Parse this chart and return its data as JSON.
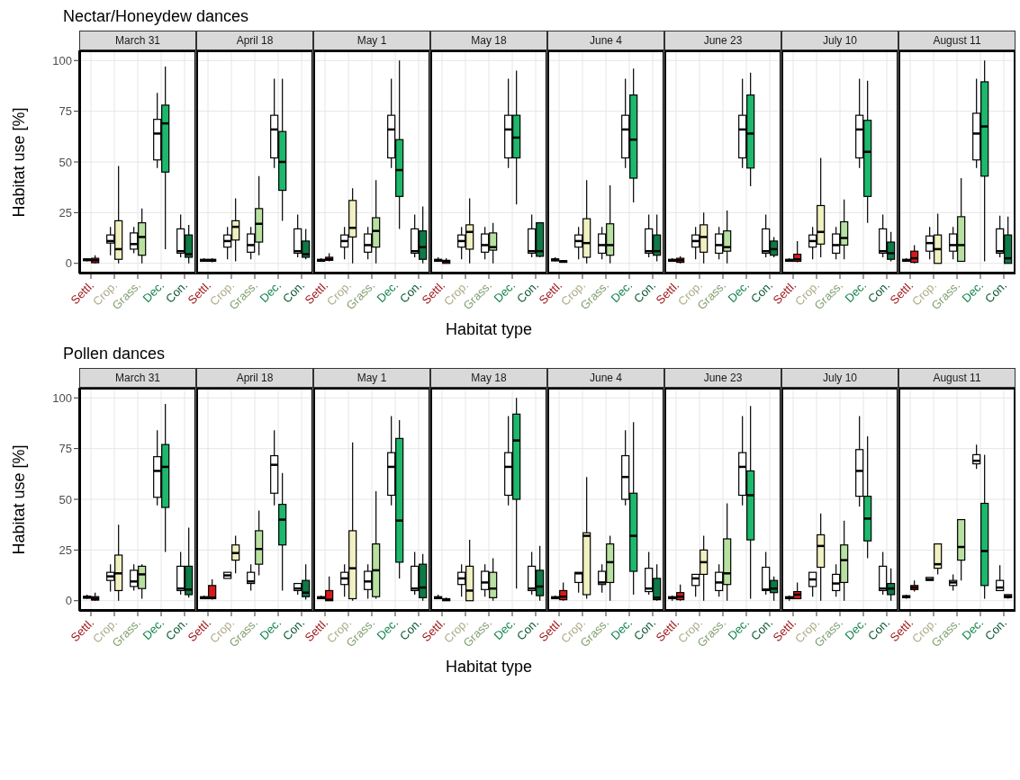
{
  "chart_data": [
    {
      "type": "box",
      "title": "Nectar/Honeydew dances",
      "subtitle": "March 31",
      "ylabel": "Habitat use [%]",
      "categories": [
        "Settl.",
        "Crop.",
        "Grass.",
        "Dec.",
        "Con."
      ],
      "ylim": [
        -5,
        105
      ],
      "yticks": [
        0,
        25,
        50,
        75,
        100
      ],
      "grid": true,
      "series": [
        {
          "color": "#ffffff",
          "boxes": [
            {
              "low": 1,
              "q1": 1.3,
              "median": 1.8,
              "q3": 2.2,
              "high": 2.5
            },
            {
              "low": 4,
              "q1": 10,
              "median": 11,
              "q3": 14,
              "high": 18
            },
            {
              "low": 5,
              "q1": 7,
              "median": 9.5,
              "q3": 15,
              "high": 18
            },
            {
              "low": 47,
              "q1": 51,
              "median": 64,
              "q3": 71,
              "high": 84
            },
            {
              "low": 3,
              "q1": 5,
              "median": 6,
              "q3": 17,
              "high": 24
            }
          ]
        },
        {
          "colors": [
            "#d7191c",
            "#f0f0c0",
            "#b8e0a0",
            "#1db86c",
            "#0e7a46"
          ],
          "boxes": [
            {
              "low": 0,
              "q1": 0.3,
              "median": 1.5,
              "q3": 2.5,
              "high": 4
            },
            {
              "low": 0,
              "q1": 2,
              "median": 7,
              "q3": 21,
              "high": 48
            },
            {
              "low": 0,
              "q1": 4,
              "median": 13,
              "q3": 20,
              "high": 27
            },
            {
              "low": 7,
              "q1": 45,
              "median": 69,
              "q3": 78,
              "high": 97
            },
            {
              "low": 0,
              "q1": 3,
              "median": 4.5,
              "q3": 14,
              "high": 19
            }
          ]
        }
      ]
    },
    {
      "type": "box",
      "subtitle": "April 18",
      "categories": [
        "Settl.",
        "Crop.",
        "Grass.",
        "Dec.",
        "Con."
      ],
      "ylim": [
        -5,
        105
      ],
      "yticks": [
        0,
        25,
        50,
        75,
        100
      ],
      "grid": true,
      "tick_labels": "x",
      "series": [
        {
          "color": "#ffffff",
          "boxes": [
            {
              "low": 1,
              "q1": 1,
              "median": 1.5,
              "q3": 2,
              "high": 2.5
            },
            {
              "low": 2,
              "q1": 8,
              "median": 11,
              "q3": 14,
              "high": 18
            },
            {
              "low": 2,
              "q1": 5.5,
              "median": 9,
              "q3": 14.5,
              "high": 18
            },
            {
              "low": 47,
              "q1": 52,
              "median": 66,
              "q3": 73,
              "high": 91
            },
            {
              "low": 3,
              "q1": 5,
              "median": 6,
              "q3": 17,
              "high": 24
            }
          ]
        },
        {
          "colors": [
            "#d7191c",
            "#f0f0c0",
            "#b8e0a0",
            "#1db86c",
            "#0e7a46"
          ],
          "boxes": [
            {
              "low": 0.5,
              "q1": 1,
              "median": 1.5,
              "q3": 2,
              "high": 2.5
            },
            {
              "low": 1,
              "q1": 11.5,
              "median": 18,
              "q3": 21,
              "high": 32
            },
            {
              "low": 4,
              "q1": 10.5,
              "median": 19.5,
              "q3": 27,
              "high": 43
            },
            {
              "low": 21,
              "q1": 36,
              "median": 50,
              "q3": 65,
              "high": 91
            },
            {
              "low": 2,
              "q1": 3,
              "median": 4.5,
              "q3": 11,
              "high": 17
            }
          ]
        }
      ]
    },
    {
      "type": "box",
      "subtitle": "May 1",
      "categories": [
        "Settl.",
        "Crop.",
        "Grass.",
        "Dec.",
        "Con."
      ],
      "ylim": [
        -5,
        105
      ],
      "yticks": [
        0,
        25,
        50,
        75,
        100
      ],
      "grid": true,
      "tick_labels": "x",
      "series": [
        {
          "color": "#ffffff",
          "boxes": [
            {
              "low": 1,
              "q1": 1,
              "median": 1.5,
              "q3": 2,
              "high": 2.5
            },
            {
              "low": 2,
              "q1": 8,
              "median": 11,
              "q3": 14,
              "high": 18
            },
            {
              "low": 2,
              "q1": 5.5,
              "median": 9,
              "q3": 14.5,
              "high": 18
            },
            {
              "low": 47,
              "q1": 52,
              "median": 66,
              "q3": 73,
              "high": 91
            },
            {
              "low": 3,
              "q1": 5,
              "median": 6,
              "q3": 17,
              "high": 24
            }
          ]
        },
        {
          "colors": [
            "#d7191c",
            "#f0f0c0",
            "#b8e0a0",
            "#1db86c",
            "#0e7a46"
          ],
          "boxes": [
            {
              "low": 1,
              "q1": 1.5,
              "median": 2,
              "q3": 3,
              "high": 5
            },
            {
              "low": 0,
              "q1": 13,
              "median": 17.5,
              "q3": 31,
              "high": 37
            },
            {
              "low": 0,
              "q1": 8,
              "median": 16,
              "q3": 22.5,
              "high": 41
            },
            {
              "low": 17,
              "q1": 33,
              "median": 46,
              "q3": 61,
              "high": 100
            },
            {
              "low": 0,
              "q1": 2,
              "median": 8,
              "q3": 16,
              "high": 28
            }
          ]
        }
      ]
    },
    {
      "type": "box",
      "subtitle": "May 18",
      "xlabel": "Habitat type",
      "categories": [
        "Settl.",
        "Crop.",
        "Grass.",
        "Dec.",
        "Con."
      ],
      "ylim": [
        -5,
        105
      ],
      "yticks": [
        0,
        25,
        50,
        75,
        100
      ],
      "grid": true,
      "tick_labels": "x",
      "series": [
        {
          "color": "#ffffff",
          "boxes": [
            {
              "low": 1,
              "q1": 1,
              "median": 1.5,
              "q3": 2,
              "high": 3
            },
            {
              "low": 2,
              "q1": 8,
              "median": 11,
              "q3": 14,
              "high": 18
            },
            {
              "low": 2,
              "q1": 5.5,
              "median": 9,
              "q3": 14.5,
              "high": 18
            },
            {
              "low": 47,
              "q1": 52,
              "median": 66,
              "q3": 73,
              "high": 91
            },
            {
              "low": 3,
              "q1": 5,
              "median": 6,
              "q3": 17,
              "high": 24
            }
          ]
        },
        {
          "colors": [
            "#d7191c",
            "#f0f0c0",
            "#b8e0a0",
            "#1db86c",
            "#0e7a46"
          ],
          "boxes": [
            {
              "low": 0,
              "q1": 0,
              "median": 1,
              "q3": 1.5,
              "high": 2.5
            },
            {
              "low": 0,
              "q1": 7,
              "median": 15.5,
              "q3": 19,
              "high": 32
            },
            {
              "low": 0,
              "q1": 6.5,
              "median": 8,
              "q3": 15,
              "high": 20
            },
            {
              "low": 29,
              "q1": 52,
              "median": 62,
              "q3": 73,
              "high": 95
            },
            {
              "low": 3,
              "q1": 3.5,
              "median": 6,
              "q3": 20,
              "high": 20
            }
          ]
        }
      ]
    },
    {
      "type": "box",
      "subtitle": "June 4",
      "categories": [
        "Settl.",
        "Crop.",
        "Grass.",
        "Dec.",
        "Con."
      ],
      "ylim": [
        -5,
        105
      ],
      "yticks": [
        0,
        25,
        50,
        75,
        100
      ],
      "grid": true,
      "tick_labels": "x",
      "series": [
        {
          "color": "#ffffff",
          "boxes": [
            {
              "low": 1,
              "q1": 1.2,
              "median": 1.8,
              "q3": 2.2,
              "high": 3
            },
            {
              "low": 2,
              "q1": 8,
              "median": 11,
              "q3": 14,
              "high": 18
            },
            {
              "low": 2,
              "q1": 5,
              "median": 9,
              "q3": 14.5,
              "high": 18
            },
            {
              "low": 47,
              "q1": 52,
              "median": 66,
              "q3": 73,
              "high": 91
            },
            {
              "low": 3,
              "q1": 5,
              "median": 6,
              "q3": 17,
              "high": 24
            }
          ]
        },
        {
          "colors": [
            "#d7191c",
            "#f0f0c0",
            "#b8e0a0",
            "#1db86c",
            "#0e7a46"
          ],
          "boxes": [
            {
              "low": 0.3,
              "q1": 0.5,
              "median": 1,
              "q3": 1.3,
              "high": 1.5
            },
            {
              "low": 0,
              "q1": 3,
              "median": 10,
              "q3": 22,
              "high": 41
            },
            {
              "low": 0,
              "q1": 4,
              "median": 9,
              "q3": 19.5,
              "high": 38.5
            },
            {
              "low": 30,
              "q1": 42,
              "median": 61,
              "q3": 83,
              "high": 96
            },
            {
              "low": 1,
              "q1": 4,
              "median": 6,
              "q3": 14,
              "high": 24
            }
          ]
        }
      ]
    },
    {
      "type": "box",
      "subtitle": "June 23",
      "categories": [
        "Settl.",
        "Crop.",
        "Grass.",
        "Dec.",
        "Con."
      ],
      "ylim": [
        -5,
        105
      ],
      "yticks": [
        0,
        25,
        50,
        75,
        100
      ],
      "grid": true,
      "tick_labels": "x",
      "series": [
        {
          "color": "#ffffff",
          "boxes": [
            {
              "low": 1,
              "q1": 1,
              "median": 1.5,
              "q3": 2,
              "high": 2.5
            },
            {
              "low": 2,
              "q1": 8,
              "median": 11,
              "q3": 14,
              "high": 18
            },
            {
              "low": 2,
              "q1": 5,
              "median": 9,
              "q3": 14.5,
              "high": 18
            },
            {
              "low": 47,
              "q1": 52,
              "median": 66,
              "q3": 73,
              "high": 91
            },
            {
              "low": 3,
              "q1": 5,
              "median": 6,
              "q3": 17,
              "high": 24
            }
          ]
        },
        {
          "colors": [
            "#d7191c",
            "#f0f0c0",
            "#b8e0a0",
            "#1db86c",
            "#0e7a46"
          ],
          "boxes": [
            {
              "low": 0,
              "q1": 0.5,
              "median": 1.5,
              "q3": 2.5,
              "high": 3.5
            },
            {
              "low": 0,
              "q1": 5.5,
              "median": 13,
              "q3": 19,
              "high": 25
            },
            {
              "low": 0,
              "q1": 6,
              "median": 8,
              "q3": 16,
              "high": 26
            },
            {
              "low": 38,
              "q1": 47,
              "median": 64,
              "q3": 83,
              "high": 94
            },
            {
              "low": 3,
              "q1": 4,
              "median": 7,
              "q3": 11,
              "high": 13
            }
          ]
        }
      ]
    },
    {
      "type": "box",
      "subtitle": "July 10",
      "categories": [
        "Settl.",
        "Crop.",
        "Grass.",
        "Dec.",
        "Con."
      ],
      "ylim": [
        -5,
        105
      ],
      "yticks": [
        0,
        25,
        50,
        75,
        100
      ],
      "grid": true,
      "tick_labels": "x",
      "series": [
        {
          "color": "#ffffff",
          "boxes": [
            {
              "low": 1,
              "q1": 1,
              "median": 1.5,
              "q3": 2,
              "high": 2.5
            },
            {
              "low": 2,
              "q1": 8,
              "median": 11,
              "q3": 14,
              "high": 18
            },
            {
              "low": 2,
              "q1": 5,
              "median": 9,
              "q3": 14.5,
              "high": 18
            },
            {
              "low": 47,
              "q1": 52,
              "median": 66,
              "q3": 73,
              "high": 91
            },
            {
              "low": 3,
              "q1": 5,
              "median": 6,
              "q3": 17,
              "high": 24
            }
          ]
        },
        {
          "colors": [
            "#d7191c",
            "#f0f0c0",
            "#b8e0a0",
            "#1db86c",
            "#0e7a46"
          ],
          "boxes": [
            {
              "low": 0.5,
              "q1": 1,
              "median": 2,
              "q3": 4.5,
              "high": 11
            },
            {
              "low": 3,
              "q1": 9.5,
              "median": 15.5,
              "q3": 28.5,
              "high": 52
            },
            {
              "low": 2,
              "q1": 9,
              "median": 12.5,
              "q3": 20.5,
              "high": 31.5
            },
            {
              "low": 20,
              "q1": 33,
              "median": 55,
              "q3": 70.5,
              "high": 90
            },
            {
              "low": 1,
              "q1": 2,
              "median": 5,
              "q3": 10.5,
              "high": 15.5
            }
          ]
        }
      ]
    },
    {
      "type": "box",
      "subtitle": "August 11",
      "categories": [
        "Settl.",
        "Crop.",
        "Grass.",
        "Dec.",
        "Con."
      ],
      "ylim": [
        -5,
        105
      ],
      "yticks": [
        0,
        25,
        50,
        75,
        100
      ],
      "grid": true,
      "tick_labels": "x",
      "series": [
        {
          "color": "#ffffff",
          "boxes": [
            {
              "low": 1,
              "q1": 1,
              "median": 1.5,
              "q3": 2,
              "high": 2.5
            },
            {
              "low": 2,
              "q1": 6,
              "median": 10,
              "q3": 13.5,
              "high": 18
            },
            {
              "low": 2,
              "q1": 6,
              "median": 9,
              "q3": 14.5,
              "high": 18
            },
            {
              "low": 47,
              "q1": 51,
              "median": 64,
              "q3": 74,
              "high": 91
            },
            {
              "low": 3,
              "q1": 5,
              "median": 6,
              "q3": 17,
              "high": 23.5
            }
          ]
        },
        {
          "colors": [
            "#d7191c",
            "#f0f0c0",
            "#b8e0a0",
            "#1db86c",
            "#0e7a46"
          ],
          "boxes": [
            {
              "low": 0,
              "q1": 0.5,
              "median": 2.5,
              "q3": 6,
              "high": 9
            },
            {
              "low": 0,
              "q1": 0,
              "median": 7,
              "q3": 14,
              "high": 24.5
            },
            {
              "low": 1,
              "q1": 1,
              "median": 9,
              "q3": 23,
              "high": 42
            },
            {
              "low": 1,
              "q1": 43,
              "median": 67.5,
              "q3": 89.5,
              "high": 100
            },
            {
              "low": 0,
              "q1": 0,
              "median": 2.5,
              "q3": 14,
              "high": 23
            }
          ]
        }
      ]
    },
    {
      "type": "box",
      "title": "Pollen dances",
      "subtitle": "March 31",
      "ylabel": "Habitat use [%]",
      "categories": [
        "Settl.",
        "Crop.",
        "Grass.",
        "Dec.",
        "Con."
      ],
      "ylim": [
        -5,
        105
      ],
      "yticks": [
        0,
        25,
        50,
        75,
        100
      ],
      "grid": true,
      "series": [
        {
          "color": "#ffffff",
          "boxes": [
            {
              "low": 1,
              "q1": 1.2,
              "median": 1.8,
              "q3": 2.2,
              "high": 3
            },
            {
              "low": 4.5,
              "q1": 10,
              "median": 12,
              "q3": 14,
              "high": 18
            },
            {
              "low": 5,
              "q1": 7,
              "median": 9.5,
              "q3": 15,
              "high": 18
            },
            {
              "low": 47,
              "q1": 51,
              "median": 64,
              "q3": 71,
              "high": 84
            },
            {
              "low": 3,
              "q1": 5,
              "median": 6,
              "q3": 17,
              "high": 24
            }
          ]
        },
        {
          "colors": [
            "#d7191c",
            "#f0f0c0",
            "#b8e0a0",
            "#1db86c",
            "#0e7a46"
          ],
          "boxes": [
            {
              "low": 0,
              "q1": 0.3,
              "median": 1,
              "q3": 2,
              "high": 4
            },
            {
              "low": 0,
              "q1": 5,
              "median": 13.5,
              "q3": 22.5,
              "high": 37.5
            },
            {
              "low": 1,
              "q1": 6,
              "median": 13,
              "q3": 17,
              "high": 18
            },
            {
              "low": 24,
              "q1": 46,
              "median": 66,
              "q3": 77,
              "high": 97
            },
            {
              "low": 1.5,
              "q1": 3,
              "median": 5.5,
              "q3": 17,
              "high": 36
            }
          ]
        }
      ]
    },
    {
      "type": "box",
      "subtitle": "April 18",
      "categories": [
        "Settl.",
        "Crop.",
        "Grass.",
        "Dec.",
        "Con."
      ],
      "ylim": [
        -5,
        105
      ],
      "yticks": [
        0,
        25,
        50,
        75,
        100
      ],
      "grid": true,
      "tick_labels": "x",
      "series": [
        {
          "color": "#ffffff",
          "boxes": [
            {
              "low": 1,
              "q1": 1,
              "median": 1.5,
              "q3": 2,
              "high": 2.5
            },
            {
              "low": 11,
              "q1": 11,
              "median": 12.5,
              "q3": 14,
              "high": 14
            },
            {
              "low": 5,
              "q1": 8.5,
              "median": 9.5,
              "q3": 14,
              "high": 18
            },
            {
              "low": 47,
              "q1": 53,
              "median": 67,
              "q3": 71.5,
              "high": 84
            },
            {
              "low": 3,
              "q1": 5,
              "median": 6,
              "q3": 8.5,
              "high": 8.5
            }
          ]
        },
        {
          "colors": [
            "#d7191c",
            "#f0f0c0",
            "#b8e0a0",
            "#1db86c",
            "#0e7a46"
          ],
          "boxes": [
            {
              "low": 0.5,
              "q1": 1,
              "median": 1.5,
              "q3": 7.5,
              "high": 10.5
            },
            {
              "low": 13.5,
              "q1": 20,
              "median": 23.5,
              "q3": 27.5,
              "high": 32
            },
            {
              "low": 12.5,
              "q1": 18,
              "median": 25.5,
              "q3": 34.5,
              "high": 44.5
            },
            {
              "low": 5,
              "q1": 27.5,
              "median": 40,
              "q3": 47.5,
              "high": 63
            },
            {
              "low": 0.5,
              "q1": 2,
              "median": 4,
              "q3": 10,
              "high": 18
            }
          ]
        }
      ]
    },
    {
      "type": "box",
      "subtitle": "May 1",
      "categories": [
        "Settl.",
        "Crop.",
        "Grass.",
        "Dec.",
        "Con."
      ],
      "ylim": [
        -5,
        105
      ],
      "yticks": [
        0,
        25,
        50,
        75,
        100
      ],
      "grid": true,
      "tick_labels": "x",
      "series": [
        {
          "color": "#ffffff",
          "boxes": [
            {
              "low": 1,
              "q1": 1,
              "median": 1.5,
              "q3": 2,
              "high": 2.5
            },
            {
              "low": 2,
              "q1": 8,
              "median": 11,
              "q3": 14,
              "high": 18
            },
            {
              "low": 1,
              "q1": 5.5,
              "median": 9.5,
              "q3": 14.5,
              "high": 18
            },
            {
              "low": 47,
              "q1": 52,
              "median": 66,
              "q3": 73,
              "high": 91
            },
            {
              "low": 3,
              "q1": 5,
              "median": 6,
              "q3": 17,
              "high": 24
            }
          ]
        },
        {
          "colors": [
            "#d7191c",
            "#f0f0c0",
            "#b8e0a0",
            "#1db86c",
            "#0e7a46"
          ],
          "boxes": [
            {
              "low": 0,
              "q1": 0,
              "median": 0.5,
              "q3": 5,
              "high": 12
            },
            {
              "low": 0,
              "q1": 1,
              "median": 16,
              "q3": 34.5,
              "high": 78
            },
            {
              "low": 1,
              "q1": 2,
              "median": 15,
              "q3": 28,
              "high": 54
            },
            {
              "low": 11,
              "q1": 19,
              "median": 39.5,
              "q3": 80,
              "high": 89
            },
            {
              "low": 0,
              "q1": 1.5,
              "median": 6.5,
              "q3": 18,
              "high": 23
            }
          ]
        }
      ]
    },
    {
      "type": "box",
      "subtitle": "May 18",
      "xlabel": "Habitat type",
      "categories": [
        "Settl.",
        "Crop.",
        "Grass.",
        "Dec.",
        "Con."
      ],
      "ylim": [
        -5,
        105
      ],
      "yticks": [
        0,
        25,
        50,
        75,
        100
      ],
      "grid": true,
      "tick_labels": "x",
      "series": [
        {
          "color": "#ffffff",
          "boxes": [
            {
              "low": 1,
              "q1": 1,
              "median": 1.5,
              "q3": 2,
              "high": 3
            },
            {
              "low": 2,
              "q1": 8,
              "median": 11,
              "q3": 14,
              "high": 18
            },
            {
              "low": 2,
              "q1": 5.5,
              "median": 9,
              "q3": 14.5,
              "high": 18
            },
            {
              "low": 47,
              "q1": 52,
              "median": 66,
              "q3": 73,
              "high": 91
            },
            {
              "low": 3,
              "q1": 5,
              "median": 6,
              "q3": 17,
              "high": 24
            }
          ]
        },
        {
          "colors": [
            "#d7191c",
            "#f0f0c0",
            "#b8e0a0",
            "#1db86c",
            "#0e7a46"
          ],
          "boxes": [
            {
              "low": 0,
              "q1": 0,
              "median": 0.5,
              "q3": 1,
              "high": 1.5
            },
            {
              "low": 0,
              "q1": 0,
              "median": 5,
              "q3": 17,
              "high": 30
            },
            {
              "low": 0,
              "q1": 1.5,
              "median": 6,
              "q3": 14,
              "high": 21
            },
            {
              "low": 6,
              "q1": 50,
              "median": 79,
              "q3": 92,
              "high": 100
            },
            {
              "low": 0,
              "q1": 2.5,
              "median": 7,
              "q3": 15,
              "high": 27
            }
          ]
        }
      ]
    },
    {
      "type": "box",
      "subtitle": "June 4",
      "categories": [
        "Settl.",
        "Crop.",
        "Grass.",
        "Dec.",
        "Con."
      ],
      "ylim": [
        -5,
        105
      ],
      "yticks": [
        0,
        25,
        50,
        75,
        100
      ],
      "grid": true,
      "tick_labels": "x",
      "series": [
        {
          "color": "#ffffff",
          "boxes": [
            {
              "low": 1,
              "q1": 1,
              "median": 1.5,
              "q3": 2,
              "high": 2.5
            },
            {
              "low": 4,
              "q1": 9,
              "median": 13.5,
              "q3": 14,
              "high": 14
            },
            {
              "low": 4,
              "q1": 8,
              "median": 9,
              "q3": 14.5,
              "high": 18
            },
            {
              "low": 47,
              "q1": 50,
              "median": 61,
              "q3": 71.5,
              "high": 84
            },
            {
              "low": 3,
              "q1": 4.5,
              "median": 6,
              "q3": 16,
              "high": 24
            }
          ]
        },
        {
          "colors": [
            "#d7191c",
            "#f0f0c0",
            "#b8e0a0",
            "#1db86c",
            "#0e7a46"
          ],
          "boxes": [
            {
              "low": 0,
              "q1": 0.5,
              "median": 2,
              "q3": 5,
              "high": 9
            },
            {
              "low": 1,
              "q1": 3,
              "median": 32,
              "q3": 33.5,
              "high": 61
            },
            {
              "low": 0,
              "q1": 9,
              "median": 19,
              "q3": 28,
              "high": 32
            },
            {
              "low": 3,
              "q1": 14.5,
              "median": 32,
              "q3": 53,
              "high": 88
            },
            {
              "low": 0,
              "q1": 0.5,
              "median": 1.5,
              "q3": 11,
              "high": 18
            }
          ]
        }
      ]
    },
    {
      "type": "box",
      "subtitle": "June 23",
      "categories": [
        "Settl.",
        "Crop.",
        "Grass.",
        "Dec.",
        "Con."
      ],
      "ylim": [
        -5,
        105
      ],
      "yticks": [
        0,
        25,
        50,
        75,
        100
      ],
      "grid": true,
      "tick_labels": "x",
      "series": [
        {
          "color": "#ffffff",
          "boxes": [
            {
              "low": 0,
              "q1": 1,
              "median": 1.5,
              "q3": 2,
              "high": 2.5
            },
            {
              "low": 2,
              "q1": 7.5,
              "median": 11,
              "q3": 13,
              "high": 13
            },
            {
              "low": 2,
              "q1": 5,
              "median": 9,
              "q3": 14,
              "high": 18
            },
            {
              "low": 47,
              "q1": 52,
              "median": 66,
              "q3": 73,
              "high": 91
            },
            {
              "low": 3,
              "q1": 5,
              "median": 5.5,
              "q3": 16.5,
              "high": 24
            }
          ]
        },
        {
          "colors": [
            "#d7191c",
            "#f0f0c0",
            "#b8e0a0",
            "#1db86c",
            "#0e7a46"
          ],
          "boxes": [
            {
              "low": 0,
              "q1": 0.5,
              "median": 2,
              "q3": 4,
              "high": 8
            },
            {
              "low": 0,
              "q1": 13,
              "median": 19,
              "q3": 25,
              "high": 32
            },
            {
              "low": 0,
              "q1": 8,
              "median": 13.5,
              "q3": 30.5,
              "high": 48
            },
            {
              "low": 1,
              "q1": 30,
              "median": 52,
              "q3": 64,
              "high": 96
            },
            {
              "low": 0,
              "q1": 4,
              "median": 6,
              "q3": 10,
              "high": 12
            }
          ]
        }
      ]
    },
    {
      "type": "box",
      "subtitle": "July 10",
      "categories": [
        "Settl.",
        "Crop.",
        "Grass.",
        "Dec.",
        "Con."
      ],
      "ylim": [
        -5,
        105
      ],
      "yticks": [
        0,
        25,
        50,
        75,
        100
      ],
      "grid": true,
      "tick_labels": "x",
      "series": [
        {
          "color": "#ffffff",
          "boxes": [
            {
              "low": 0,
              "q1": 1,
              "median": 1.5,
              "q3": 2,
              "high": 2.5
            },
            {
              "low": 2,
              "q1": 7,
              "median": 10.5,
              "q3": 14,
              "high": 14
            },
            {
              "low": 2,
              "q1": 5,
              "median": 8.5,
              "q3": 13,
              "high": 18
            },
            {
              "low": 46.5,
              "q1": 51.5,
              "median": 64,
              "q3": 74.5,
              "high": 91
            },
            {
              "low": 3,
              "q1": 5,
              "median": 6,
              "q3": 17,
              "high": 24
            }
          ]
        },
        {
          "colors": [
            "#d7191c",
            "#f0f0c0",
            "#b8e0a0",
            "#1db86c",
            "#0e7a46"
          ],
          "boxes": [
            {
              "low": 1,
              "q1": 1,
              "median": 3,
              "q3": 4.5,
              "high": 9
            },
            {
              "low": 0,
              "q1": 16.5,
              "median": 27,
              "q3": 32.5,
              "high": 43
            },
            {
              "low": 0,
              "q1": 9,
              "median": 20,
              "q3": 27.5,
              "high": 39.5
            },
            {
              "low": 21,
              "q1": 29.5,
              "median": 40.5,
              "q3": 51.5,
              "high": 81
            },
            {
              "low": 0,
              "q1": 3,
              "median": 6,
              "q3": 8.5,
              "high": 16
            }
          ]
        }
      ]
    },
    {
      "type": "box",
      "subtitle": "August 11",
      "categories": [
        "Settl.",
        "Crop.",
        "Grass.",
        "Dec.",
        "Con."
      ],
      "ylim": [
        -5,
        105
      ],
      "yticks": [
        0,
        25,
        50,
        75,
        100
      ],
      "grid": true,
      "tick_labels": "x",
      "series": [
        {
          "color": "#ffffff",
          "boxes": [
            {
              "low": 1,
              "q1": 1.5,
              "median": 2,
              "q3": 2.5,
              "high": 3
            },
            {
              "low": 10,
              "q1": 10,
              "median": 10.5,
              "q3": 11.5,
              "high": 11.5
            },
            {
              "low": 5,
              "q1": 7.5,
              "median": 9,
              "q3": 10,
              "high": 13
            },
            {
              "low": 65,
              "q1": 67.5,
              "median": 69,
              "q3": 72,
              "high": 77
            },
            {
              "low": 5,
              "q1": 5,
              "median": 6.5,
              "q3": 10,
              "high": 17.5
            }
          ]
        },
        {
          "colors": [
            "#d7191c",
            "#f0f0c0",
            "#b8e0a0",
            "#1db86c",
            "#0e7a46"
          ],
          "boxes": [
            {
              "low": 4.5,
              "q1": 5.5,
              "median": 6.5,
              "q3": 7.5,
              "high": 10
            },
            {
              "low": 13,
              "q1": 16,
              "median": 18,
              "q3": 28,
              "high": 28
            },
            {
              "low": 10,
              "q1": 20,
              "median": 26.5,
              "q3": 40,
              "high": 40
            },
            {
              "low": 1,
              "q1": 7.5,
              "median": 24.5,
              "q3": 48,
              "high": 72
            },
            {
              "low": 1,
              "q1": 1.5,
              "median": 2,
              "q3": 3,
              "high": 3
            }
          ]
        }
      ]
    }
  ]
}
